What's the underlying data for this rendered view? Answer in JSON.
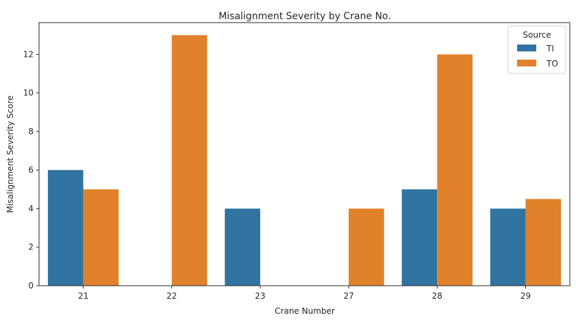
{
  "chart_data": {
    "type": "bar",
    "title": "Misalignment Severity by Crane No.",
    "xlabel": "Crane Number",
    "ylabel": "Misalignment Severity Score",
    "categories": [
      "21",
      "22",
      "23",
      "27",
      "28",
      "29"
    ],
    "series": [
      {
        "name": "TI",
        "color": "#3274a1",
        "values": [
          6,
          null,
          4,
          null,
          5,
          4
        ]
      },
      {
        "name": "TO",
        "color": "#e1812c",
        "values": [
          5,
          13,
          null,
          4,
          12,
          4.5
        ]
      }
    ],
    "ylim": [
      0,
      13.65
    ],
    "yticks": [
      0,
      2,
      4,
      6,
      8,
      10,
      12
    ],
    "legend": {
      "title": "Source",
      "position": "top-right"
    },
    "grid": false
  }
}
